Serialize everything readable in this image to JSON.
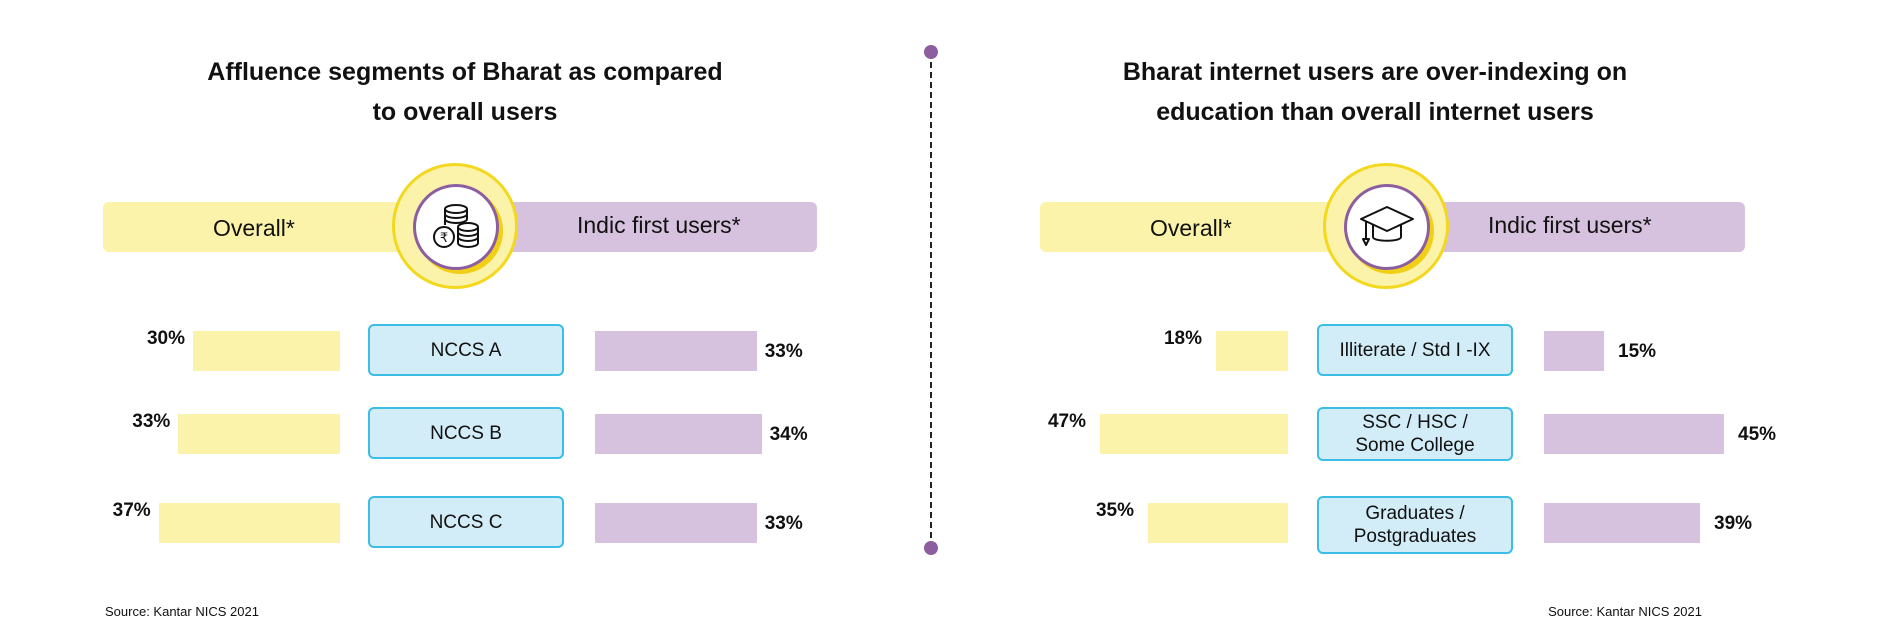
{
  "colors": {
    "overall": "#fbf3a9",
    "indic": "#d6c2de",
    "category_fill": "#d3edf8",
    "category_border": "#3bbde6",
    "badge_border": "#f3d81f",
    "badge_ring": "#8c5ea0",
    "divider_dot": "#8c5ea0"
  },
  "chart_data": [
    {
      "type": "bar",
      "title_lines": [
        "Affluence segments of Bharat as compared",
        "to overall users"
      ],
      "icon": "coins-rupee-icon",
      "series": [
        {
          "name": "Overall*",
          "values": [
            30,
            33,
            37
          ]
        },
        {
          "name": "Indic first users*",
          "values": [
            33,
            34,
            33
          ]
        }
      ],
      "categories": [
        [
          "NCCS A"
        ],
        [
          "NCCS B"
        ],
        [
          "NCCS C"
        ]
      ],
      "value_suffix": "%",
      "source": "Source: Kantar NICS 2021"
    },
    {
      "type": "bar",
      "title_lines": [
        "Bharat internet users are over-indexing on",
        "education than overall internet users"
      ],
      "icon": "graduation-cap-icon",
      "series": [
        {
          "name": "Overall*",
          "values": [
            18,
            47,
            35
          ]
        },
        {
          "name": "Indic first users*",
          "values": [
            15,
            45,
            39
          ]
        }
      ],
      "categories": [
        [
          "Illiterate / Std I -IX"
        ],
        [
          "SSC / HSC /",
          "Some College"
        ],
        [
          "Graduates /",
          "Postgraduates"
        ]
      ],
      "value_suffix": "%",
      "source": "Source: Kantar NICS 2021"
    }
  ]
}
